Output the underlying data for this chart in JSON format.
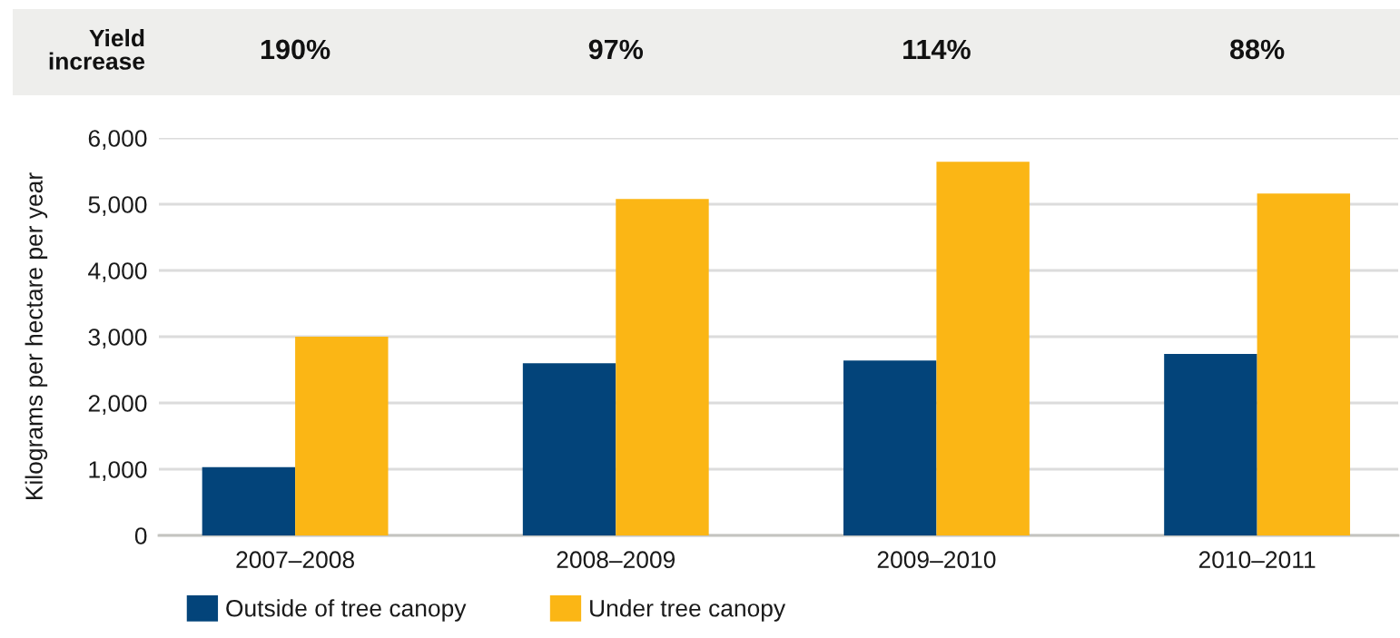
{
  "chart_data": {
    "type": "bar",
    "ylabel": "Kilograms per hectare per year",
    "categories": [
      "2007–2008",
      "2008–2009",
      "2009–2010",
      "2010–2011"
    ],
    "series": [
      {
        "name": "Outside of tree canopy",
        "color": "#03447a",
        "values": [
          1030,
          2600,
          2640,
          2740
        ]
      },
      {
        "name": "Under tree canopy",
        "color": "#fbb615",
        "values": [
          3000,
          5080,
          5640,
          5160
        ]
      }
    ],
    "ylim": [
      0,
      6000
    ],
    "yticks": [
      {
        "value": 0,
        "label": "0"
      },
      {
        "value": 1000,
        "label": "1,000"
      },
      {
        "value": 2000,
        "label": "2,000"
      },
      {
        "value": 3000,
        "label": "3,000"
      },
      {
        "value": 4000,
        "label": "4,000"
      },
      {
        "value": 5000,
        "label": "5,000"
      },
      {
        "value": 6000,
        "label": "6,000"
      }
    ],
    "grid": "y",
    "legend": "bottom",
    "annotations": [
      "Yield\nincrease",
      "190%",
      "97%",
      "114%",
      "88%"
    ]
  }
}
